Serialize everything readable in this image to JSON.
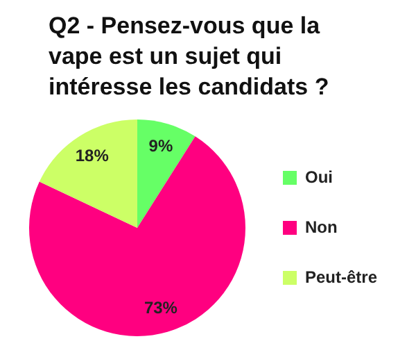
{
  "chart_data": {
    "type": "pie",
    "title": "Q2 - Pensez-vous que la vape est un sujet qui intéresse les candidats ?",
    "categories": [
      "Oui",
      "Non",
      "Peut-être"
    ],
    "values": [
      9,
      73,
      18
    ],
    "colors": [
      "#66ff66",
      "#ff0080",
      "#ccff66"
    ],
    "value_labels": [
      "9%",
      "73%",
      "18%"
    ],
    "legend": "right"
  }
}
